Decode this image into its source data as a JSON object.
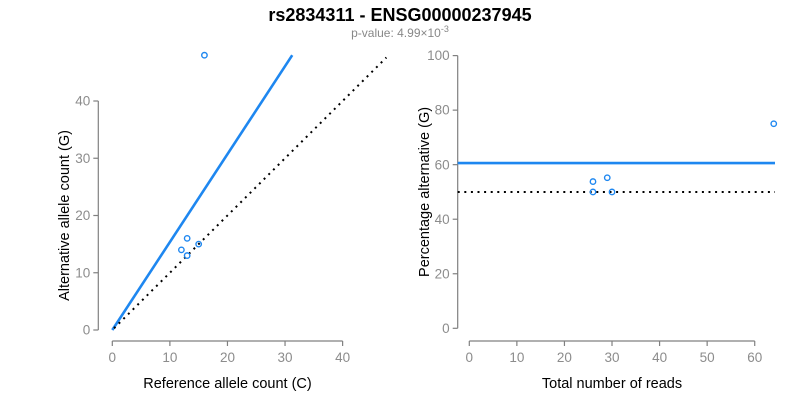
{
  "header": {
    "title": "rs2834311 - ENSG00000237945",
    "subtitle_prefix": "p-value: 4.99×10",
    "subtitle_exponent": "-3"
  },
  "colors": {
    "accent_blue": "#1E87F0",
    "line_black": "#000000",
    "axis_gray": "#808080",
    "tick_label_gray": "#8c8c8c",
    "axis_title_black": "#000000",
    "subtitle_gray": "#888888"
  },
  "chart_data": [
    {
      "name": "allele-count-scatter",
      "type": "scatter",
      "title": "",
      "xlabel": "Reference allele count (C)",
      "ylabel": "Alternative allele count (G)",
      "xticks": [
        0,
        10,
        20,
        30,
        40
      ],
      "yticks": [
        0,
        10,
        20,
        30,
        40
      ],
      "xlim": [
        -2,
        48
      ],
      "ylim": [
        -2,
        48
      ],
      "grid": false,
      "legend": "none",
      "points": [
        [
          13,
          16
        ],
        [
          15,
          15
        ],
        [
          12,
          14
        ],
        [
          13,
          13
        ],
        [
          16,
          48
        ]
      ],
      "lines": [
        {
          "name": "fit-line",
          "type": "abline",
          "style": "solid",
          "color_key": "accent_blue",
          "intercept": 0,
          "slope": 1.536,
          "x_range": [
            0,
            31.25
          ]
        },
        {
          "name": "identity-line",
          "type": "abline",
          "style": "dotted",
          "color_key": "line_black",
          "intercept": 0,
          "slope": 1,
          "x_range": [
            0.3,
            47.6
          ]
        }
      ]
    },
    {
      "name": "percentage-scatter",
      "type": "scatter",
      "title": "",
      "xlabel": "Total number of reads",
      "ylabel": "Percentage alternative (G)",
      "xticks": [
        0,
        10,
        20,
        30,
        40,
        50,
        60
      ],
      "yticks": [
        0,
        20,
        40,
        60,
        80,
        100
      ],
      "xlim": [
        -3,
        64.5
      ],
      "ylim": [
        0,
        100
      ],
      "grid": false,
      "legend": "none",
      "points": [
        [
          26,
          53.8
        ],
        [
          29,
          55.2
        ],
        [
          26,
          50
        ],
        [
          30,
          50
        ],
        [
          64,
          75
        ]
      ],
      "lines": [
        {
          "name": "mean-percentage-line",
          "type": "hline",
          "style": "solid",
          "color_key": "accent_blue",
          "y": 60.6
        },
        {
          "name": "fifty-percent-line",
          "type": "hline",
          "style": "dotted",
          "color_key": "line_black",
          "y": 50
        }
      ]
    }
  ]
}
